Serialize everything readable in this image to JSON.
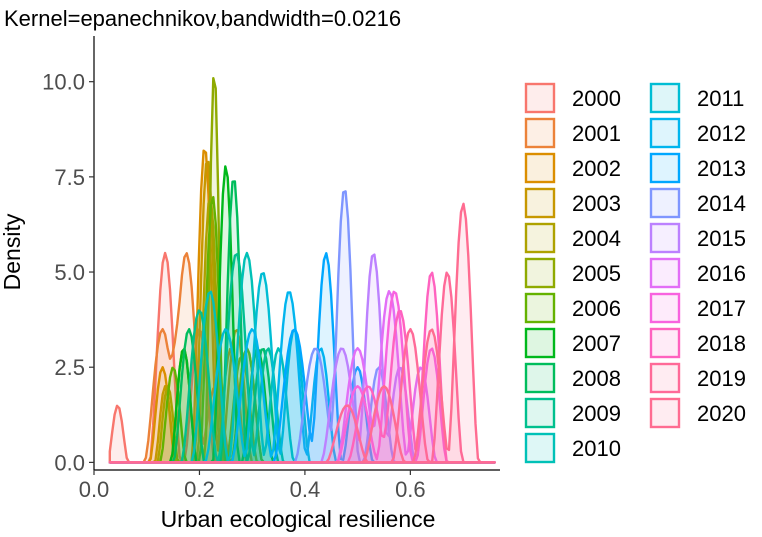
{
  "chart_data": {
    "type": "area",
    "title": "Kernel=epanechnikov,bandwidth=0.0216",
    "xlabel": "Urban ecological resilience",
    "ylabel": "Density",
    "xlim": [
      0.0,
      0.77
    ],
    "ylim": [
      -0.2,
      11.2
    ],
    "x_ticks": [
      0.0,
      0.2,
      0.4,
      0.6
    ],
    "x_tick_labels": [
      "0.0",
      "0.2",
      "0.4",
      "0.6"
    ],
    "y_ticks": [
      0.0,
      2.5,
      5.0,
      7.5,
      10.0
    ],
    "y_tick_labels": [
      "0.0",
      "2.5",
      "5.0",
      "7.5",
      "10.0"
    ],
    "grid": false,
    "legend_position": "right",
    "fill_opacity": 0.13,
    "series": [
      {
        "name": "2000",
        "color": "#F8766D",
        "peaks": [
          [
            0.045,
            1.5,
            0.02
          ],
          [
            0.135,
            5.5,
            0.03
          ],
          [
            0.2,
            3.5,
            0.03
          ]
        ]
      },
      {
        "name": "2001",
        "color": "#EC8239",
        "peaks": [
          [
            0.13,
            3.5,
            0.035
          ],
          [
            0.175,
            5.5,
            0.035
          ],
          [
            0.23,
            2.0,
            0.03
          ]
        ]
      },
      {
        "name": "2002",
        "color": "#DB8E00",
        "peaks": [
          [
            0.13,
            2.5,
            0.025
          ],
          [
            0.21,
            8.3,
            0.025
          ],
          [
            0.26,
            3.0,
            0.03
          ]
        ]
      },
      {
        "name": "2003",
        "color": "#C79800",
        "peaks": [
          [
            0.135,
            2.0,
            0.02
          ],
          [
            0.215,
            8.0,
            0.025
          ],
          [
            0.27,
            3.5,
            0.03
          ]
        ]
      },
      {
        "name": "2004",
        "color": "#AEA200",
        "peaks": [
          [
            0.14,
            2.0,
            0.02
          ],
          [
            0.22,
            7.0,
            0.025
          ],
          [
            0.29,
            3.0,
            0.03
          ]
        ]
      },
      {
        "name": "2005",
        "color": "#8FAA00",
        "peaks": [
          [
            0.17,
            3.0,
            0.025
          ],
          [
            0.228,
            10.3,
            0.018
          ],
          [
            0.28,
            2.8,
            0.03
          ]
        ]
      },
      {
        "name": "2006",
        "color": "#64B200",
        "peaks": [
          [
            0.15,
            2.5,
            0.025
          ],
          [
            0.225,
            7.0,
            0.025
          ],
          [
            0.29,
            3.0,
            0.03
          ]
        ]
      },
      {
        "name": "2007",
        "color": "#00B81B",
        "peaks": [
          [
            0.17,
            3.0,
            0.025
          ],
          [
            0.25,
            7.8,
            0.025
          ],
          [
            0.31,
            3.0,
            0.03
          ]
        ]
      },
      {
        "name": "2008",
        "color": "#00BD5C",
        "peaks": [
          [
            0.18,
            3.5,
            0.03
          ],
          [
            0.265,
            7.5,
            0.025
          ],
          [
            0.32,
            3.0,
            0.03
          ]
        ]
      },
      {
        "name": "2009",
        "color": "#00C08E",
        "peaks": [
          [
            0.2,
            4.0,
            0.035
          ],
          [
            0.27,
            5.5,
            0.035
          ],
          [
            0.33,
            3.0,
            0.03
          ]
        ]
      },
      {
        "name": "2010",
        "color": "#00C1B7",
        "peaks": [
          [
            0.22,
            4.5,
            0.035
          ],
          [
            0.29,
            5.5,
            0.035
          ],
          [
            0.35,
            3.0,
            0.03
          ]
        ]
      },
      {
        "name": "2011",
        "color": "#00BDD4",
        "peaks": [
          [
            0.25,
            3.5,
            0.04
          ],
          [
            0.32,
            5.0,
            0.035
          ],
          [
            0.38,
            3.5,
            0.03
          ]
        ]
      },
      {
        "name": "2012",
        "color": "#00B5EE",
        "peaks": [
          [
            0.3,
            3.5,
            0.04
          ],
          [
            0.37,
            4.5,
            0.035
          ],
          [
            0.43,
            3.0,
            0.03
          ]
        ]
      },
      {
        "name": "2013",
        "color": "#00A7FF",
        "peaks": [
          [
            0.38,
            3.5,
            0.04
          ],
          [
            0.44,
            5.5,
            0.03
          ],
          [
            0.5,
            2.5,
            0.03
          ]
        ]
      },
      {
        "name": "2014",
        "color": "#7F96FF",
        "peaks": [
          [
            0.42,
            3.0,
            0.04
          ],
          [
            0.475,
            7.2,
            0.028
          ],
          [
            0.54,
            2.5,
            0.03
          ]
        ]
      },
      {
        "name": "2015",
        "color": "#BC81FF",
        "peaks": [
          [
            0.47,
            3.0,
            0.04
          ],
          [
            0.53,
            5.5,
            0.03
          ],
          [
            0.58,
            2.5,
            0.03
          ]
        ]
      },
      {
        "name": "2016",
        "color": "#E26EF7",
        "peaks": [
          [
            0.5,
            3.0,
            0.04
          ],
          [
            0.56,
            4.5,
            0.035
          ],
          [
            0.62,
            2.5,
            0.03
          ]
        ]
      },
      {
        "name": "2017",
        "color": "#F863DF",
        "peaks": [
          [
            0.5,
            2.0,
            0.04
          ],
          [
            0.57,
            4.5,
            0.035
          ],
          [
            0.64,
            3.0,
            0.03
          ]
        ]
      },
      {
        "name": "2018",
        "color": "#FF62BF",
        "peaks": [
          [
            0.52,
            2.0,
            0.04
          ],
          [
            0.58,
            4.0,
            0.035
          ],
          [
            0.64,
            5.0,
            0.03
          ]
        ]
      },
      {
        "name": "2019",
        "color": "#FF6A98",
        "peaks": [
          [
            0.48,
            1.5,
            0.04
          ],
          [
            0.6,
            3.5,
            0.035
          ],
          [
            0.67,
            5.0,
            0.03
          ]
        ]
      },
      {
        "name": "2020",
        "color": "#FF6C91",
        "peaks": [
          [
            0.55,
            2.0,
            0.04
          ],
          [
            0.64,
            3.5,
            0.035
          ],
          [
            0.7,
            6.8,
            0.03
          ]
        ]
      }
    ]
  }
}
